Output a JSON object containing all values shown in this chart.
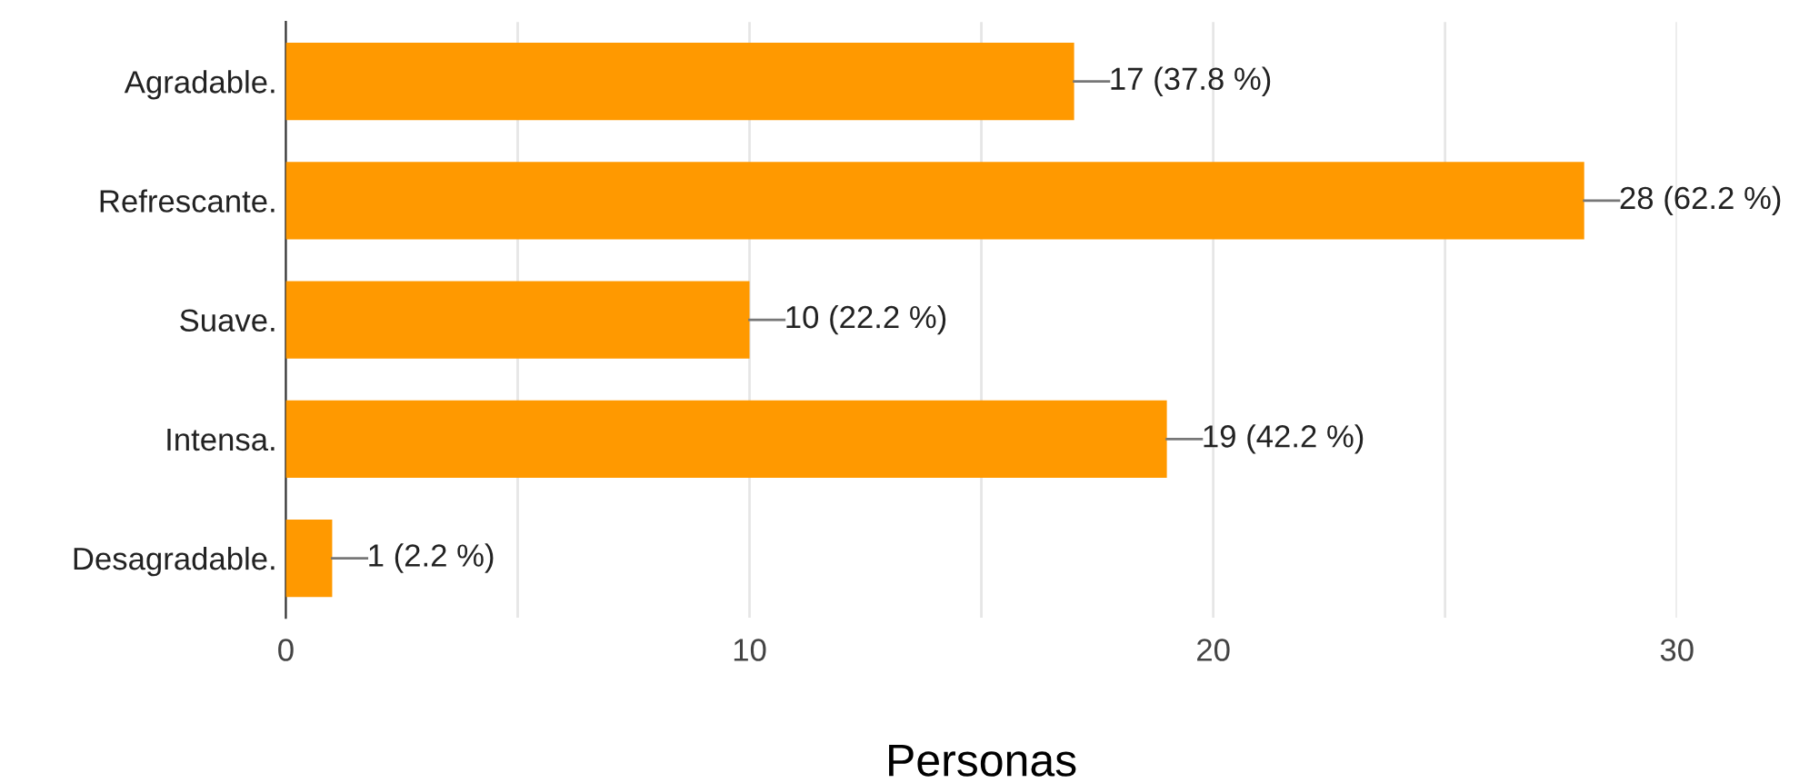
{
  "chart_data": {
    "type": "bar",
    "orientation": "horizontal",
    "xlabel": "Personas",
    "categories": [
      "Agradable.",
      "Refrescante.",
      "Suave.",
      "Intensa.",
      "Desagradable."
    ],
    "values": [
      17,
      28,
      10,
      19,
      1
    ],
    "value_labels": [
      "17 (37.8 %)",
      "28 (62.2 %)",
      "10 (22.2 %)",
      "19 (42.2 %)",
      "1 (2.2 %)"
    ],
    "color": "#ff9900",
    "xlim": [
      0,
      30
    ],
    "xticks": [
      0,
      {
        "value": 5,
        "label": null
      },
      10,
      {
        "value": 15,
        "label": null
      },
      20,
      {
        "value": 25,
        "label": null
      },
      30
    ],
    "grid": "x",
    "legend": false
  }
}
